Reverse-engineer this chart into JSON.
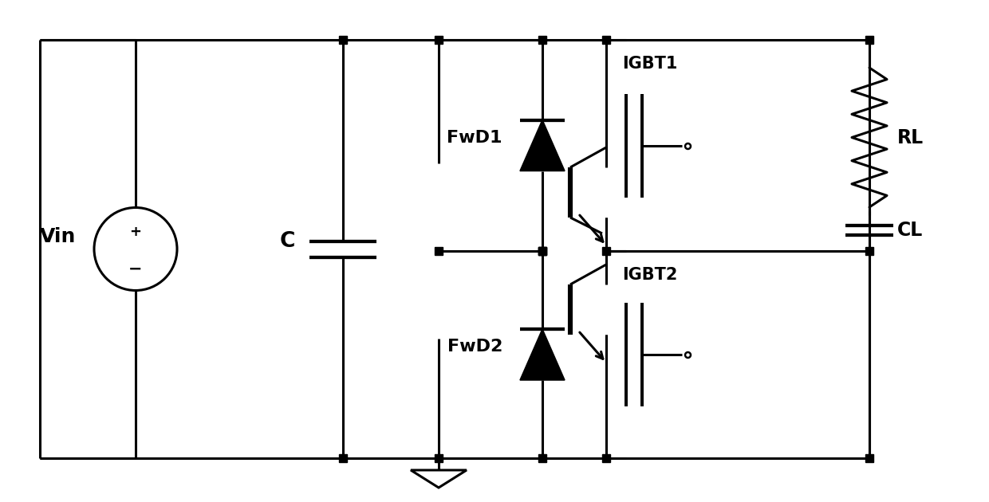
{
  "bg_color": "#ffffff",
  "line_color": "#000000",
  "lw": 2.2,
  "dot_size": 7,
  "fig_width": 12.4,
  "fig_height": 6.3,
  "xlim": [
    0,
    12.4
  ],
  "ylim": [
    0,
    6.3
  ]
}
